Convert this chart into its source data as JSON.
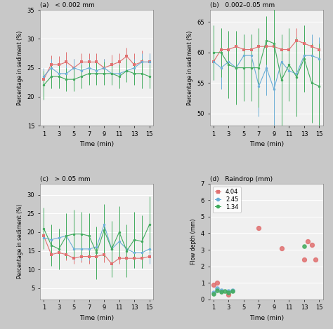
{
  "time": [
    1,
    2,
    3,
    4,
    5,
    6,
    7,
    8,
    9,
    10,
    11,
    12,
    13,
    14,
    15
  ],
  "colors": {
    "red": "#e07070",
    "blue": "#6baed6",
    "green": "#41ab5d"
  },
  "panel_a": {
    "title": "(a)   < 0.002 mm",
    "ylabel": "Percentage in sediment (%)",
    "xlabel": "Time (min)",
    "ylim": [
      15,
      35
    ],
    "yticks": [
      15,
      20,
      25,
      30,
      35
    ],
    "red_y": [
      23.0,
      25.6,
      25.5,
      26.0,
      25.0,
      26.0,
      26.0,
      26.0,
      25.0,
      25.5,
      26.0,
      27.0,
      25.5,
      26.0,
      26.0
    ],
    "red_err": [
      1.5,
      1.5,
      1.5,
      1.8,
      1.5,
      1.5,
      1.5,
      1.5,
      1.5,
      1.8,
      1.5,
      1.5,
      2.0,
      2.0,
      1.5
    ],
    "blue_y": [
      23.5,
      25.0,
      24.0,
      24.0,
      25.0,
      24.5,
      25.0,
      24.5,
      25.0,
      24.0,
      24.0,
      24.5,
      25.0,
      26.0,
      26.0
    ],
    "blue_err": [
      1.5,
      1.5,
      1.5,
      1.5,
      1.5,
      1.5,
      1.5,
      1.5,
      1.5,
      1.5,
      1.5,
      1.5,
      1.5,
      1.5,
      1.5
    ],
    "green_y": [
      22.0,
      23.5,
      23.5,
      23.0,
      23.0,
      23.5,
      24.0,
      24.0,
      24.0,
      24.0,
      23.5,
      24.5,
      24.0,
      24.0,
      23.5
    ],
    "green_err": [
      2.5,
      2.0,
      2.0,
      2.0,
      2.0,
      2.0,
      2.0,
      2.0,
      2.0,
      2.0,
      2.0,
      2.0,
      2.0,
      2.5,
      2.0
    ]
  },
  "panel_b": {
    "title": "(b)   0.002–0.05 mm",
    "ylabel": "Percentage in sediment (%)",
    "xlabel": "Time (min)",
    "ylim": [
      48,
      67
    ],
    "yticks": [
      50,
      55,
      60,
      65
    ],
    "red_y": [
      58.5,
      60.5,
      60.5,
      61.0,
      60.5,
      60.5,
      61.0,
      61.0,
      61.0,
      60.5,
      60.5,
      62.0,
      61.5,
      61.0,
      60.5
    ],
    "red_err": [
      1.5,
      1.5,
      1.5,
      1.5,
      1.5,
      1.5,
      1.5,
      1.5,
      1.5,
      1.5,
      1.5,
      2.0,
      1.5,
      1.5,
      1.5
    ],
    "blue_y": [
      58.5,
      57.5,
      58.5,
      57.5,
      59.5,
      59.5,
      54.5,
      57.5,
      54.0,
      58.5,
      57.0,
      56.5,
      59.5,
      59.5,
      59.0
    ],
    "blue_err": [
      3.0,
      3.5,
      4.5,
      4.5,
      3.5,
      3.5,
      5.0,
      4.5,
      7.0,
      4.0,
      4.0,
      5.0,
      3.5,
      3.5,
      3.5
    ],
    "green_y": [
      60.0,
      60.0,
      58.0,
      57.5,
      57.5,
      57.5,
      57.5,
      62.0,
      61.5,
      55.5,
      58.0,
      56.0,
      59.0,
      55.0,
      54.5
    ],
    "green_err": [
      4.5,
      4.0,
      5.5,
      6.0,
      5.5,
      5.5,
      6.5,
      4.0,
      6.0,
      7.5,
      6.0,
      6.5,
      5.5,
      6.5,
      7.0
    ]
  },
  "panel_c": {
    "title": "(c)   > 0.05 mm",
    "ylabel": "Percentage in sediment (%)",
    "xlabel": "Time (min)",
    "ylim": [
      2,
      33
    ],
    "yticks": [
      5,
      10,
      15,
      20,
      25,
      30
    ],
    "red_y": [
      19.0,
      14.0,
      14.5,
      14.0,
      13.0,
      13.5,
      13.5,
      13.5,
      14.0,
      11.5,
      13.0,
      13.0,
      13.0,
      13.0,
      13.5
    ],
    "red_err": [
      1.5,
      1.5,
      1.5,
      1.5,
      1.5,
      1.5,
      2.0,
      2.0,
      2.0,
      2.0,
      1.5,
      1.5,
      1.5,
      1.5,
      1.5
    ],
    "blue_y": [
      18.5,
      18.0,
      18.5,
      19.0,
      15.5,
      15.5,
      15.5,
      16.0,
      22.0,
      15.5,
      17.5,
      15.5,
      14.5,
      14.5,
      15.5
    ],
    "blue_err": [
      2.0,
      2.5,
      2.5,
      2.5,
      3.0,
      3.0,
      3.0,
      3.5,
      3.5,
      4.0,
      3.5,
      3.5,
      4.0,
      4.0,
      4.0
    ],
    "green_y": [
      21.0,
      16.5,
      15.5,
      19.0,
      19.5,
      19.5,
      19.0,
      14.5,
      20.5,
      15.5,
      20.0,
      15.0,
      18.0,
      17.5,
      22.0
    ],
    "green_err": [
      5.5,
      5.5,
      5.5,
      6.0,
      6.5,
      6.0,
      6.0,
      7.0,
      7.0,
      7.5,
      7.0,
      7.0,
      7.5,
      7.0,
      7.5
    ]
  },
  "panel_d": {
    "title": "(d)   Raindrop (mm)",
    "ylabel": "Flow depth (mm)",
    "xlabel": "Time (min)",
    "ylim": [
      0,
      7
    ],
    "yticks": [
      0,
      1,
      2,
      3,
      4,
      5,
      6,
      7
    ],
    "red_x": [
      1.0,
      1.5,
      3.0,
      7.0,
      10.0,
      13.0,
      13.5,
      14.0,
      14.5
    ],
    "red_y": [
      0.9,
      1.0,
      0.3,
      4.3,
      3.1,
      2.4,
      3.5,
      3.3,
      2.4
    ],
    "blue_x": [
      1.0,
      1.5,
      2.0,
      3.0,
      3.5
    ],
    "blue_y": [
      0.4,
      0.65,
      0.55,
      0.5,
      0.55
    ],
    "green_x": [
      1.0,
      1.5,
      2.0,
      2.5,
      3.0,
      3.5,
      13.0
    ],
    "green_y": [
      0.35,
      0.55,
      0.45,
      0.5,
      0.4,
      0.5,
      3.2
    ],
    "legend_labels": [
      "4.04",
      "2.45",
      "1.34"
    ]
  },
  "bg_color": "#c8c8c8",
  "plot_bg": "#f0f0f0"
}
